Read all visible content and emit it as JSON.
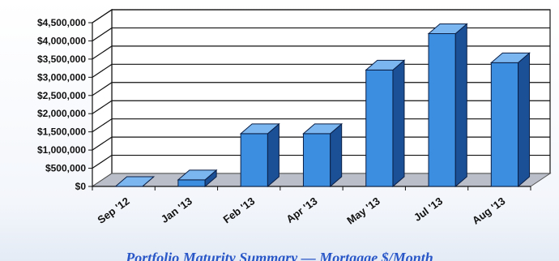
{
  "chart_data": {
    "type": "bar",
    "title": "",
    "xlabel": "",
    "ylabel": "",
    "categories": [
      "Sep '12",
      "Jan '13",
      "Feb '13",
      "Apr '13",
      "May '13",
      "Jul '13",
      "Aug '13"
    ],
    "values": [
      0,
      180000,
      1450000,
      1450000,
      3200000,
      4200000,
      3400000
    ],
    "ylim": [
      0,
      4500000
    ],
    "y_ticks": [
      0,
      500000,
      1000000,
      1500000,
      2000000,
      2500000,
      3000000,
      3500000,
      4000000,
      4500000
    ],
    "y_tick_labels": [
      "$0",
      "$500,000",
      "$1,000,000",
      "$1,500,000",
      "$2,000,000",
      "$2,500,000",
      "$3,000,000",
      "$3,500,000",
      "$4,000,000",
      "$4,500,000"
    ],
    "grid": true,
    "three_d": true,
    "legend": "none",
    "colors": {
      "bar_front": "#3b8ee0",
      "bar_top": "#7bb6f0",
      "bar_side": "#1b4f96",
      "bar_stroke": "#0a1f46",
      "grid": "#111111",
      "floor": "#b9bec8"
    }
  },
  "caption": "Portfolio Maturity Summary — Mortgage $/Month"
}
